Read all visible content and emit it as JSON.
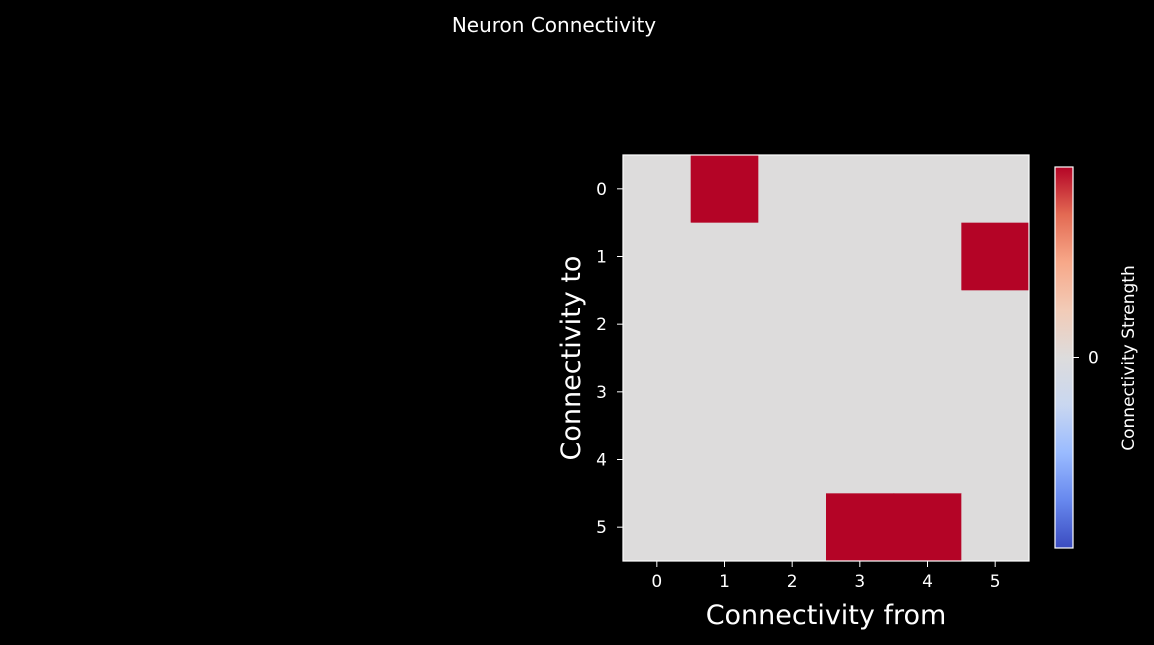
{
  "chart_data": {
    "type": "heatmap",
    "title": "Neuron Connectivity",
    "xlabel": "Connectivity from",
    "ylabel": "Connectivity to",
    "x_categories": [
      "0",
      "1",
      "2",
      "3",
      "4",
      "5"
    ],
    "y_categories": [
      "0",
      "1",
      "2",
      "3",
      "4",
      "5"
    ],
    "matrix": [
      [
        0,
        1,
        0,
        0,
        0,
        0
      ],
      [
        0,
        0,
        0,
        0,
        0,
        1
      ],
      [
        0,
        0,
        0,
        0,
        0,
        0
      ],
      [
        0,
        0,
        0,
        0,
        0,
        0
      ],
      [
        0,
        0,
        0,
        0,
        0,
        0
      ],
      [
        0,
        0,
        0,
        1,
        1,
        0
      ]
    ],
    "colormap": "coolwarm",
    "colorbar": {
      "label": "Connectivity Strength",
      "ticks": [
        "0"
      ],
      "tick_values": [
        0
      ],
      "range": [
        -1,
        1
      ],
      "colors": [
        "#3b4cc0",
        "#6788ee",
        "#9abbff",
        "#c9d7f0",
        "#dddcdc",
        "#f2cbb7",
        "#f7a889",
        "#e36a53",
        "#b40426"
      ]
    },
    "grid": false
  },
  "colors": {
    "background": "#000000",
    "text": "#ffffff",
    "zero_cell": "#dddcdc",
    "positive_cell": "#b40426"
  }
}
